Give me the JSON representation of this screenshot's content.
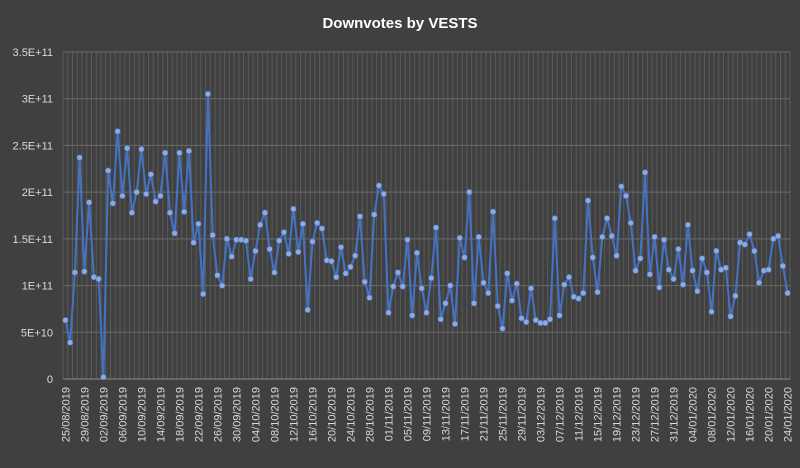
{
  "chart_data": {
    "type": "line",
    "title": "Downvotes by VESTS",
    "xlabel": "",
    "ylabel": "",
    "ylim": [
      0,
      350000000000
    ],
    "y_ticks": [
      "0",
      "5E+10",
      "1E+11",
      "1.5E+11",
      "2E+11",
      "2.5E+11",
      "3E+11",
      "3.5E+11"
    ],
    "x_tick_labels": [
      "25/08/2019",
      "29/08/2019",
      "02/09/2019",
      "06/09/2019",
      "10/09/2019",
      "14/09/2019",
      "18/09/2019",
      "22/09/2019",
      "26/09/2019",
      "30/09/2019",
      "04/10/2019",
      "08/10/2019",
      "12/10/2019",
      "16/10/2019",
      "20/10/2019",
      "24/10/2019",
      "28/10/2019",
      "01/11/2019",
      "05/11/2019",
      "09/11/2019",
      "13/11/2019",
      "17/11/2019",
      "21/11/2019",
      "25/11/2019",
      "29/11/2019",
      "03/12/2019",
      "07/12/2019",
      "11/12/2019",
      "15/12/2019",
      "19/12/2019",
      "23/12/2019",
      "27/12/2019",
      "31/12/2019",
      "04/01/2020",
      "08/01/2020",
      "12/01/2020",
      "16/01/2020",
      "20/01/2020",
      "24/01/2020"
    ],
    "grid": true,
    "line_color": "#4472c4",
    "marker_color": "#8faadc",
    "background_color": "#404040",
    "values": [
      63000000000,
      39000000000,
      114000000000,
      237000000000,
      115000000000,
      189000000000,
      109000000000,
      107000000000,
      2000000000,
      223000000000,
      188000000000,
      265000000000,
      196000000000,
      247000000000,
      178000000000,
      200000000000,
      246000000000,
      198000000000,
      219000000000,
      190000000000,
      196000000000,
      242000000000,
      178000000000,
      156000000000,
      242000000000,
      179000000000,
      244000000000,
      146000000000,
      166000000000,
      91000000000,
      305000000000,
      154000000000,
      111000000000,
      100000000000,
      150000000000,
      131000000000,
      149000000000,
      149000000000,
      148000000000,
      107000000000,
      137000000000,
      165000000000,
      178000000000,
      139000000000,
      114000000000,
      148000000000,
      157000000000,
      134000000000,
      182000000000,
      136000000000,
      166000000000,
      74000000000,
      147000000000,
      167000000000,
      161000000000,
      127000000000,
      126000000000,
      109000000000,
      141000000000,
      113000000000,
      120000000000,
      132000000000,
      174000000000,
      104000000000,
      87000000000,
      176000000000,
      207000000000,
      198000000000,
      71000000000,
      99000000000,
      114000000000,
      99000000000,
      149000000000,
      68000000000,
      135000000000,
      97000000000,
      71000000000,
      108000000000,
      162000000000,
      64000000000,
      81000000000,
      100000000000,
      59000000000,
      151000000000,
      130000000000,
      200000000000,
      81000000000,
      152000000000,
      103000000000,
      92000000000,
      179000000000,
      78000000000,
      54000000000,
      113000000000,
      84000000000,
      102000000000,
      65000000000,
      61000000000,
      97000000000,
      63000000000,
      60000000000,
      60000000000,
      64000000000,
      172000000000,
      68000000000,
      101000000000,
      109000000000,
      88000000000,
      86000000000,
      92000000000,
      191000000000,
      130000000000,
      93000000000,
      152000000000,
      172000000000,
      153000000000,
      132000000000,
      206000000000,
      196000000000,
      167000000000,
      116000000000,
      129000000000,
      221000000000,
      112000000000,
      152000000000,
      98000000000,
      149000000000,
      117000000000,
      107000000000,
      139000000000,
      101000000000,
      165000000000,
      116000000000,
      94000000000,
      129000000000,
      114000000000,
      72000000000,
      137000000000,
      117000000000,
      119000000000,
      67000000000,
      89000000000,
      146000000000,
      144000000000,
      155000000000,
      137000000000,
      103000000000,
      116000000000,
      117000000000,
      150000000000,
      153000000000,
      121000000000,
      92000000000
    ]
  }
}
